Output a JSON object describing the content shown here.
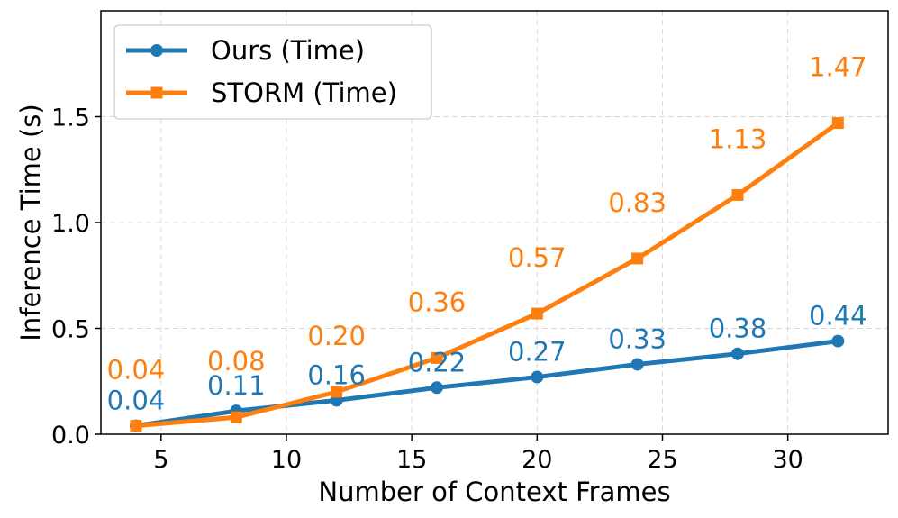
{
  "chart_data": {
    "type": "line",
    "title": "",
    "xlabel": "Number of Context Frames",
    "ylabel": "Inference Time (s)",
    "x": [
      4,
      8,
      12,
      16,
      20,
      24,
      28,
      32
    ],
    "xlim": [
      2.6,
      34
    ],
    "ylim": [
      0,
      2.0
    ],
    "xticks": [
      5,
      10,
      15,
      20,
      25,
      30
    ],
    "yticks": [
      0.0,
      0.5,
      1.0,
      1.5
    ],
    "xtick_labels": [
      "5",
      "10",
      "15",
      "20",
      "25",
      "30"
    ],
    "ytick_labels": [
      "0.0",
      "0.5",
      "1.0",
      "1.5"
    ],
    "grid": true,
    "legend_position": "top-left",
    "series": [
      {
        "name": "Ours (Time)",
        "color": "#1f77b4",
        "marker": "circle",
        "values": [
          0.04,
          0.11,
          0.16,
          0.22,
          0.27,
          0.33,
          0.38,
          0.44
        ],
        "labels": [
          "0.04",
          "0.11",
          "0.16",
          "0.22",
          "0.27",
          "0.33",
          "0.38",
          "0.44"
        ]
      },
      {
        "name": "STORM (Time)",
        "color": "#ff7f0e",
        "marker": "square",
        "values": [
          0.04,
          0.08,
          0.2,
          0.36,
          0.57,
          0.83,
          1.13,
          1.47
        ],
        "labels": [
          "0.04",
          "0.08",
          "0.20",
          "0.36",
          "0.57",
          "0.83",
          "1.13",
          "1.47"
        ]
      }
    ]
  }
}
